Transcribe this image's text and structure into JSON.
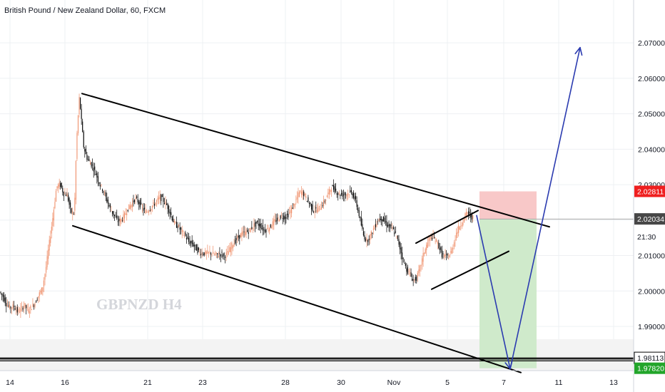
{
  "header": {
    "title": "British Pound / New Zealand Dollar, 60, FXCM"
  },
  "watermark": "GBPNZD H4",
  "colors": {
    "up_candle": "#ef8f6a",
    "down_candle": "#000000",
    "channel": "#000000",
    "projection": "#2b3bb0",
    "stop_zone": "#f8c8c8",
    "target_zone": "#cfeacb",
    "stop_badge": "#ef1f1f",
    "target_badge": "#22a52a",
    "current_badge": "#474747",
    "grid": "#eef0f3"
  },
  "chart_data": {
    "type": "candlestick",
    "symbol": "GBPNZD",
    "interval": "60",
    "x_tick_labels": [
      "14",
      "16",
      "21",
      "23",
      "28",
      "30",
      "Nov",
      "5",
      "7",
      "11",
      "13"
    ],
    "y_tick_labels": [
      "1.99000",
      "2.00000",
      "2.01000",
      "2.02000",
      "2.03000",
      "2.04000",
      "2.05000",
      "2.06000",
      "2.07000"
    ],
    "ylim": [
      1.9715,
      2.0821
    ],
    "grid": true,
    "price_path_x": [
      0,
      5,
      10,
      15,
      20,
      25,
      30,
      35,
      40,
      45,
      50,
      55,
      60,
      65,
      70,
      75,
      80,
      85,
      90,
      95,
      100,
      105,
      108,
      112,
      115,
      118,
      122,
      126,
      130,
      135,
      140,
      145,
      150,
      155,
      160,
      165,
      170,
      175,
      180,
      185,
      190,
      195,
      200,
      205,
      210,
      215,
      220,
      225,
      230,
      235,
      240,
      245,
      250,
      255,
      260,
      265,
      270,
      275,
      280,
      285,
      290,
      295,
      300,
      305,
      310,
      315,
      320,
      325,
      330,
      335,
      340,
      345,
      350,
      355,
      360,
      365,
      370,
      375,
      380,
      385,
      390,
      395,
      400,
      405,
      410,
      415,
      420,
      425,
      430,
      435,
      440,
      445,
      450,
      455,
      460,
      465,
      470,
      475,
      480,
      485,
      490,
      495,
      500,
      505,
      510,
      515,
      520,
      525,
      530,
      535,
      540,
      545,
      550,
      555,
      560,
      565,
      570,
      575,
      580,
      585,
      590,
      595,
      600,
      605,
      610,
      615,
      620,
      625,
      630,
      635,
      640,
      645,
      650,
      655,
      660,
      665
    ],
    "price_path": [
      1.9998,
      1.9985,
      1.9962,
      1.9953,
      1.9958,
      1.9942,
      1.9947,
      1.9962,
      1.9943,
      1.9955,
      1.9967,
      1.9989,
      2.0006,
      2.0063,
      2.0137,
      2.0212,
      2.0294,
      2.0301,
      2.0275,
      2.0271,
      2.0223,
      2.0219,
      2.0421,
      2.0549,
      2.0477,
      2.0408,
      2.0378,
      2.0364,
      2.0355,
      2.0331,
      2.0304,
      2.0285,
      2.0259,
      2.0233,
      2.0216,
      2.0198,
      2.0199,
      2.0212,
      2.0233,
      2.0244,
      2.0261,
      2.0251,
      2.0233,
      2.0223,
      2.0231,
      2.0242,
      2.0252,
      2.0265,
      2.0254,
      2.0241,
      2.0216,
      2.019,
      2.0183,
      2.0168,
      2.0157,
      2.0139,
      2.0134,
      2.0122,
      2.0109,
      2.0107,
      2.0106,
      2.0108,
      2.0103,
      2.0101,
      2.0105,
      2.0099,
      2.0107,
      2.0126,
      2.0141,
      2.0152,
      2.0162,
      2.0165,
      2.017,
      2.0183,
      2.0191,
      2.0186,
      2.0173,
      2.0173,
      2.0183,
      2.0196,
      2.0202,
      2.0212,
      2.0208,
      2.0216,
      2.0233,
      2.0253,
      2.0277,
      2.0279,
      2.026,
      2.0245,
      2.0227,
      2.023,
      2.0237,
      2.0251,
      2.0272,
      2.0293,
      2.0286,
      2.0274,
      2.0272,
      2.0273,
      2.0277,
      2.0276,
      2.0248,
      2.0206,
      2.0157,
      2.0142,
      2.0157,
      2.0178,
      2.0199,
      2.0206,
      2.0195,
      2.0183,
      2.0177,
      2.0161,
      2.0132,
      2.0092,
      2.0063,
      2.0048,
      2.0029,
      2.0037,
      2.007,
      2.0109,
      2.0136,
      2.0154,
      2.0146,
      2.0131,
      2.0102,
      2.0097,
      2.0097,
      2.0121,
      2.0162,
      2.0184,
      2.0199,
      2.0222,
      2.0212,
      2.0205
    ],
    "drawings": [
      {
        "name": "channel-upper",
        "points": [
          [
            115,
            2.0557
          ],
          [
            770,
            2.0181
          ]
        ]
      },
      {
        "name": "channel-lower",
        "points": [
          [
            102,
            2.0184
          ],
          [
            730,
            1.977
          ]
        ]
      },
      {
        "name": "rising-wedge-upper",
        "points": [
          [
            583,
            2.0135
          ],
          [
            670,
            2.0227
          ]
        ]
      },
      {
        "name": "rising-wedge-lower",
        "points": [
          [
            605,
            2.0005
          ],
          [
            713,
            2.0112
          ]
        ]
      },
      {
        "name": "projection-down",
        "points": [
          [
            668,
            2.0213
          ],
          [
            715,
            1.978
          ]
        ]
      },
      {
        "name": "projection-up",
        "points": [
          [
            715,
            1.978
          ],
          [
            813,
            2.0687
          ]
        ]
      }
    ],
    "position": {
      "type": "short",
      "x_start": 672,
      "x_end": 752,
      "entry": 2.0203,
      "stop": 2.0281,
      "target": 1.9782
    },
    "horizontal_levels": [
      1.9811,
      1.9808,
      1.9803
    ],
    "axis_badges": [
      {
        "name": "stop-price-badge",
        "label": "2.02811",
        "value": 2.02811,
        "kind": "stop"
      },
      {
        "name": "current-price-badge",
        "label": "2.02034",
        "value": 2.02034,
        "kind": "current"
      },
      {
        "name": "countdown-badge",
        "label": "21:30",
        "value": 2.0153,
        "kind": "countdown"
      },
      {
        "name": "support-level-badge",
        "label": "1.98113",
        "value": 1.98113,
        "kind": "level"
      },
      {
        "name": "target-price-badge",
        "label": "1.97820",
        "value": 1.9782,
        "kind": "target"
      }
    ]
  }
}
